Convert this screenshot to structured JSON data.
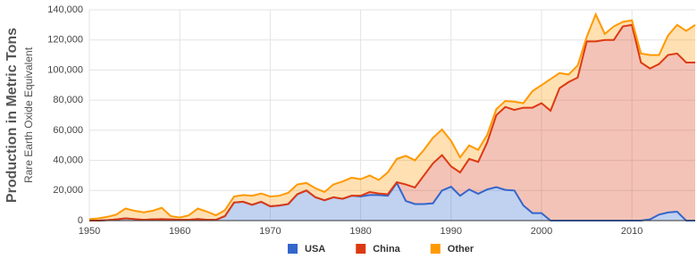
{
  "chart_data": {
    "type": "stacked_area",
    "y_label": "Production in Metric Tons",
    "y_sublabel": "Rare Earth Oxide Equivalent",
    "x": [
      1950,
      1951,
      1952,
      1953,
      1954,
      1955,
      1956,
      1957,
      1958,
      1959,
      1960,
      1961,
      1962,
      1963,
      1964,
      1965,
      1966,
      1967,
      1968,
      1969,
      1970,
      1971,
      1972,
      1973,
      1974,
      1975,
      1976,
      1977,
      1978,
      1979,
      1980,
      1981,
      1982,
      1983,
      1984,
      1985,
      1986,
      1987,
      1988,
      1989,
      1990,
      1991,
      1992,
      1993,
      1994,
      1995,
      1996,
      1997,
      1998,
      1999,
      2000,
      2001,
      2002,
      2003,
      2004,
      2005,
      2006,
      2007,
      2008,
      2009,
      2010,
      2011,
      2012,
      2013,
      2014,
      2015,
      2016,
      2017
    ],
    "series": [
      {
        "name": "USA",
        "color": "#3366cc",
        "values": [
          0,
          0,
          300,
          800,
          1500,
          1000,
          500,
          800,
          1000,
          800,
          500,
          500,
          1000,
          500,
          500,
          3000,
          12000,
          12500,
          10500,
          12500,
          9500,
          10000,
          11000,
          17500,
          20000,
          15500,
          13500,
          15500,
          14500,
          16500,
          16000,
          17000,
          17000,
          16500,
          25000,
          13000,
          11000,
          11000,
          11500,
          20000,
          22500,
          16500,
          20700,
          17800,
          20700,
          22200,
          20400,
          20000,
          10000,
          5000,
          5000,
          0,
          0,
          0,
          0,
          0,
          0,
          0,
          0,
          0,
          0,
          0,
          800,
          4000,
          5400,
          5900,
          0,
          0
        ]
      },
      {
        "name": "China",
        "color": "#dc3912",
        "values": [
          0,
          0,
          0,
          0,
          0,
          0,
          0,
          0,
          0,
          0,
          0,
          0,
          0,
          0,
          0,
          0,
          0,
          0,
          0,
          0,
          0,
          0,
          0,
          0,
          0,
          0,
          0,
          0,
          0,
          0,
          500,
          2000,
          1000,
          1000,
          500,
          11000,
          11000,
          19000,
          26500,
          23500,
          13500,
          15500,
          20300,
          21200,
          31300,
          47800,
          55100,
          53500,
          65000,
          70000,
          73000,
          73000,
          88000,
          92000,
          95000,
          119000,
          119000,
          120000,
          120000,
          129000,
          130000,
          105000,
          100200,
          100000,
          104600,
          105100,
          105000,
          105000
        ]
      },
      {
        "name": "Other",
        "color": "#ff9900",
        "values": [
          1000,
          1500,
          2200,
          3200,
          6500,
          5500,
          5000,
          5700,
          7500,
          2200,
          1500,
          3000,
          7000,
          5500,
          3000,
          4000,
          4000,
          4500,
          6000,
          5500,
          6500,
          6500,
          7500,
          6500,
          5000,
          6000,
          5500,
          8500,
          11500,
          12000,
          11000,
          11000,
          9000,
          14500,
          15500,
          19000,
          18000,
          17000,
          17000,
          17000,
          17000,
          10000,
          9000,
          8000,
          5000,
          4000,
          4000,
          5500,
          3000,
          11000,
          12000,
          21000,
          10000,
          5000,
          8000,
          3000,
          18000,
          4000,
          9000,
          3000,
          3000,
          6000,
          9000,
          6000,
          13000,
          19000,
          21000,
          25000
        ]
      }
    ],
    "xlim": [
      1950,
      2017
    ],
    "xticks": [
      1950,
      1960,
      1970,
      1980,
      1990,
      2000,
      2010
    ],
    "ylim": [
      0,
      140000
    ],
    "yticks": [
      0,
      {
        "value": 20000,
        "label": "20,000"
      },
      {
        "value": 40000,
        "label": "40,000"
      },
      {
        "value": 60000,
        "label": "60,000"
      },
      {
        "value": 80000,
        "label": "80,000"
      },
      {
        "value": 100000,
        "label": "100,000"
      },
      {
        "value": 120000,
        "label": "120,000"
      },
      {
        "value": 140000,
        "label": "140,000"
      }
    ],
    "grid": true,
    "legend": "bottom"
  }
}
